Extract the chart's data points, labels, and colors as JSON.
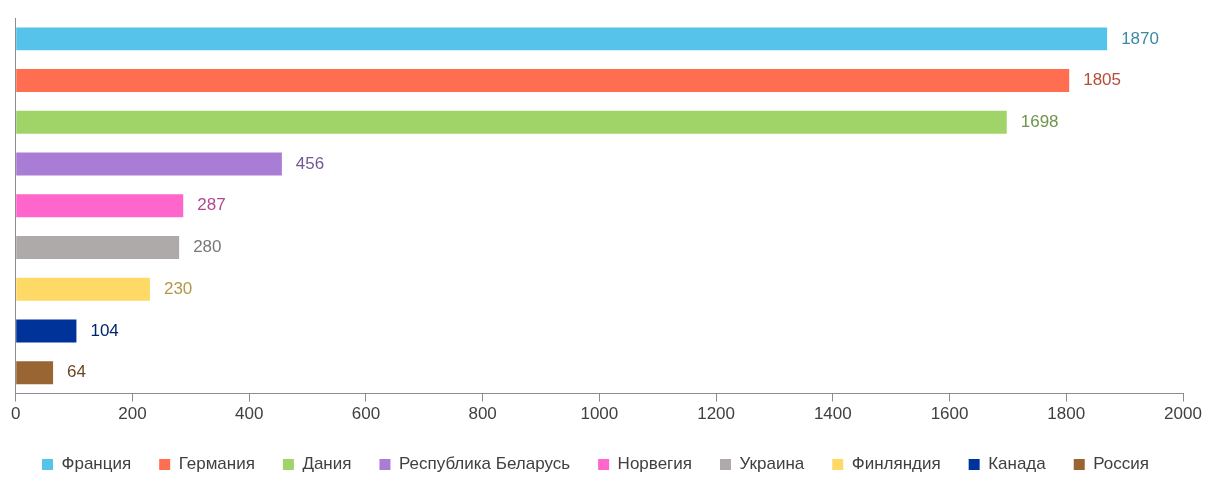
{
  "chart_data": {
    "type": "bar",
    "orientation": "horizontal",
    "categories": [
      null,
      null,
      null,
      null,
      null,
      null,
      null,
      null,
      null
    ],
    "series": [
      {
        "name": "Франция",
        "color": "#55c3ea",
        "values": [
          1870,
          null,
          null,
          null,
          null,
          null,
          null,
          null,
          null
        ]
      },
      {
        "name": "Германия",
        "color": "#ff6e50",
        "values": [
          null,
          1805,
          null,
          null,
          null,
          null,
          null,
          null,
          null
        ]
      },
      {
        "name": "Дания",
        "color": "#a0d468",
        "values": [
          null,
          null,
          1698,
          null,
          null,
          null,
          null,
          null,
          null
        ]
      },
      {
        "name": "Республика Беларусь",
        "color": "#a97cd6",
        "values": [
          null,
          null,
          null,
          456,
          null,
          null,
          null,
          null,
          null
        ]
      },
      {
        "name": "Норвегия",
        "color": "#ff66cc",
        "values": [
          null,
          null,
          null,
          null,
          287,
          null,
          null,
          null,
          null
        ]
      },
      {
        "name": "Украина",
        "color": "#aeaaaa",
        "values": [
          null,
          null,
          null,
          null,
          null,
          280,
          null,
          null,
          null
        ]
      },
      {
        "name": "Финляндия",
        "color": "#ffd966",
        "values": [
          null,
          null,
          null,
          null,
          null,
          null,
          230,
          null,
          null
        ]
      },
      {
        "name": "Канада",
        "color": "#003399",
        "values": [
          null,
          null,
          null,
          null,
          null,
          null,
          null,
          104,
          null
        ]
      },
      {
        "name": "Россия",
        "color": "#996633",
        "values": [
          null,
          null,
          null,
          null,
          null,
          null,
          null,
          null,
          64
        ]
      }
    ],
    "xlim": [
      0,
      2000
    ],
    "xticks": [
      0,
      200,
      400,
      600,
      800,
      1000,
      1200,
      1400,
      1600,
      1800,
      2000
    ],
    "data_labels": true,
    "legend": "bottom",
    "tick_labels": "x",
    "grid": false
  }
}
